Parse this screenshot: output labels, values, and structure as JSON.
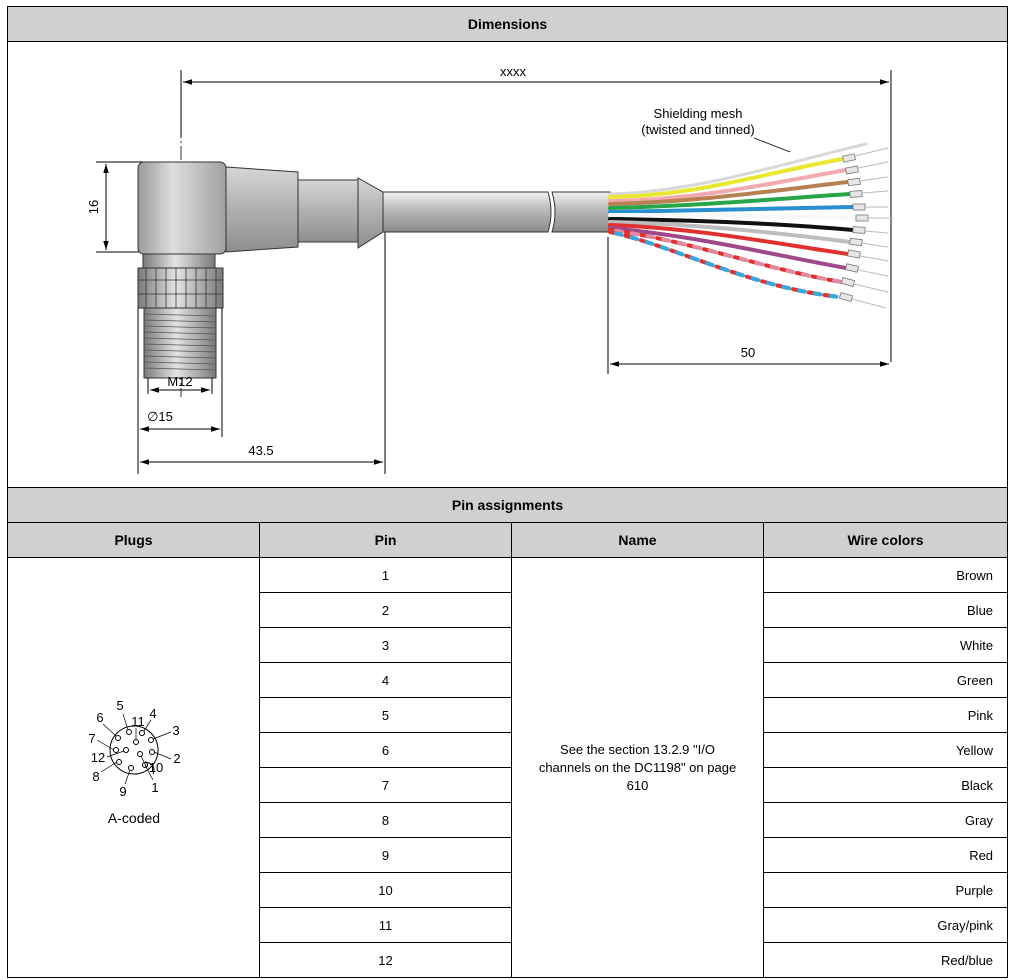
{
  "dimensions": {
    "title": "Dimensions",
    "labels": {
      "length": "xxxx",
      "height": "16",
      "thread": "M12",
      "diameter": "∅15",
      "connector_length": "43.5",
      "strip_length": "50",
      "shield_line1": "Shielding mesh",
      "shield_line2": "(twisted and tinned)"
    }
  },
  "pins": {
    "title": "Pin assignments",
    "headers": [
      "Plugs",
      "Pin",
      "Name",
      "Wire colors"
    ],
    "plug_caption": "A-coded",
    "plug_pin_labels": [
      "1",
      "2",
      "3",
      "4",
      "5",
      "6",
      "7",
      "8",
      "9",
      "10",
      "11",
      "12"
    ],
    "name_text": "See the section 13.2.9 \"I/O channels on the DC1198\" on page 610",
    "rows": [
      {
        "pin": "1",
        "color": "Brown"
      },
      {
        "pin": "2",
        "color": "Blue"
      },
      {
        "pin": "3",
        "color": "White"
      },
      {
        "pin": "4",
        "color": "Green"
      },
      {
        "pin": "5",
        "color": "Pink"
      },
      {
        "pin": "6",
        "color": "Yellow"
      },
      {
        "pin": "7",
        "color": "Black"
      },
      {
        "pin": "8",
        "color": "Gray"
      },
      {
        "pin": "9",
        "color": "Red"
      },
      {
        "pin": "10",
        "color": "Purple"
      },
      {
        "pin": "11",
        "color": "Gray/pink"
      },
      {
        "pin": "12",
        "color": "Red/blue"
      }
    ]
  },
  "wire_hex_colors": [
    "#e8e830",
    "#f2aab0",
    "#b98052",
    "#27a64a",
    "#2a8fd0",
    "#ffffff",
    "#111111",
    "#bdbdbd",
    "#e03030",
    "#a0488a",
    "#e08aa0",
    "#e03030",
    "#36a8dc"
  ]
}
